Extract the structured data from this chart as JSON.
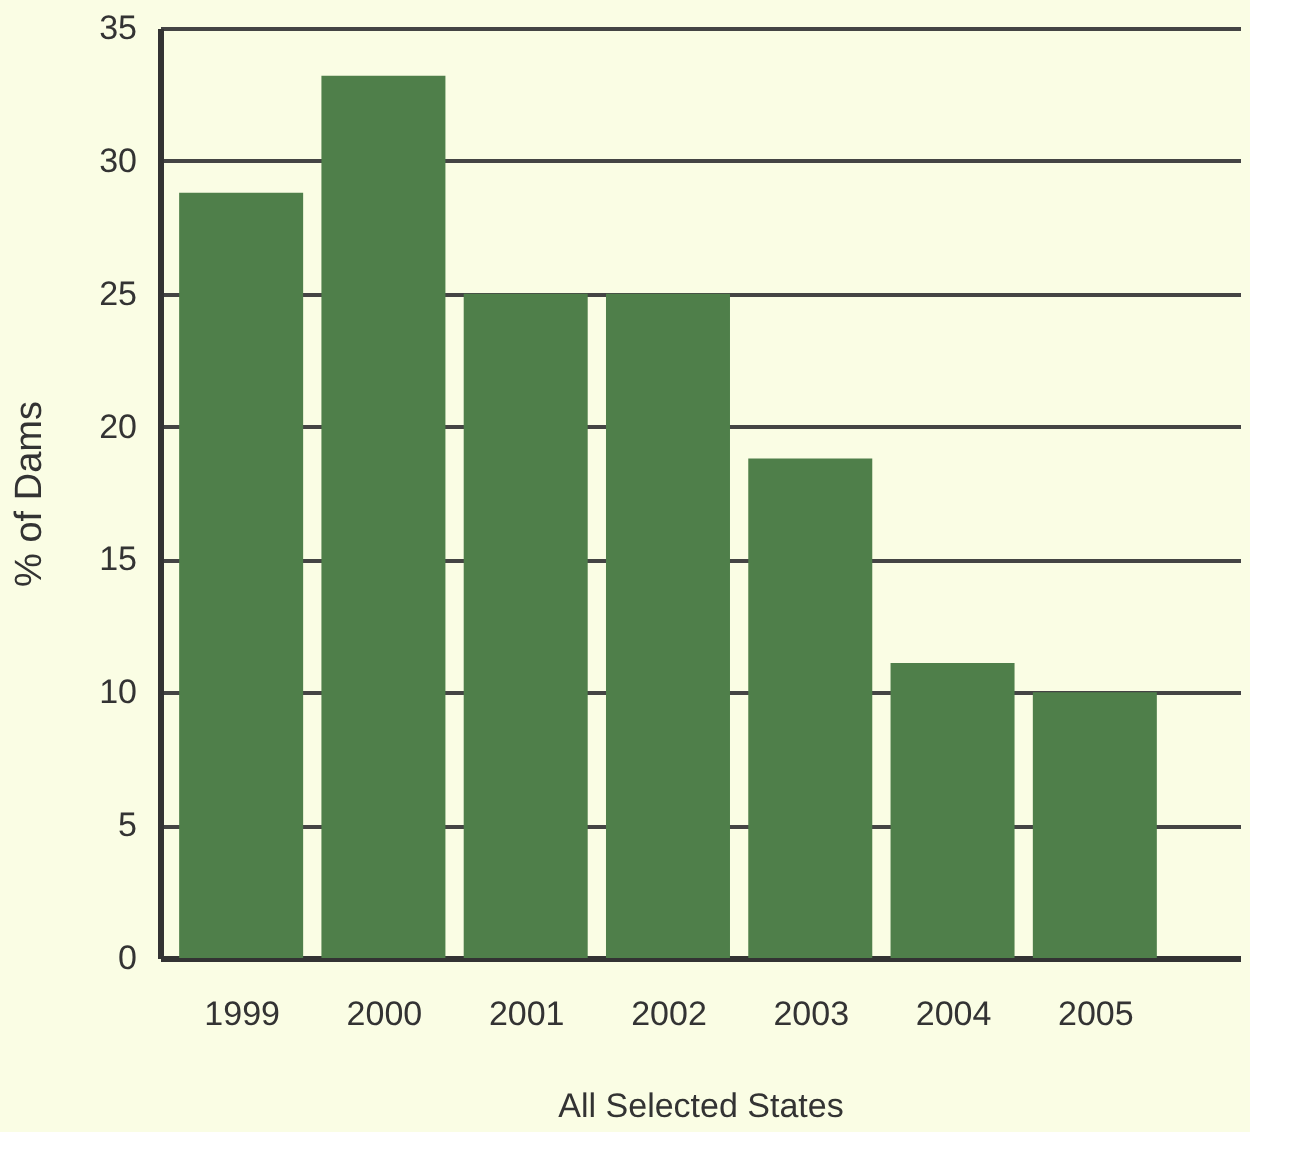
{
  "chart_data": {
    "type": "bar",
    "xlabel": "All Selected States",
    "ylabel": "% of Dams",
    "categories": [
      "1999",
      "2000",
      "2001",
      "2002",
      "2003",
      "2004",
      "2005"
    ],
    "values": [
      28.8,
      33.2,
      25,
      25,
      18.8,
      11.1,
      10
    ],
    "color": "#4f7f4a",
    "ylim": [
      0,
      35
    ],
    "yticks": [
      0,
      5,
      10,
      15,
      20,
      25,
      30,
      35
    ],
    "grid": "y"
  }
}
